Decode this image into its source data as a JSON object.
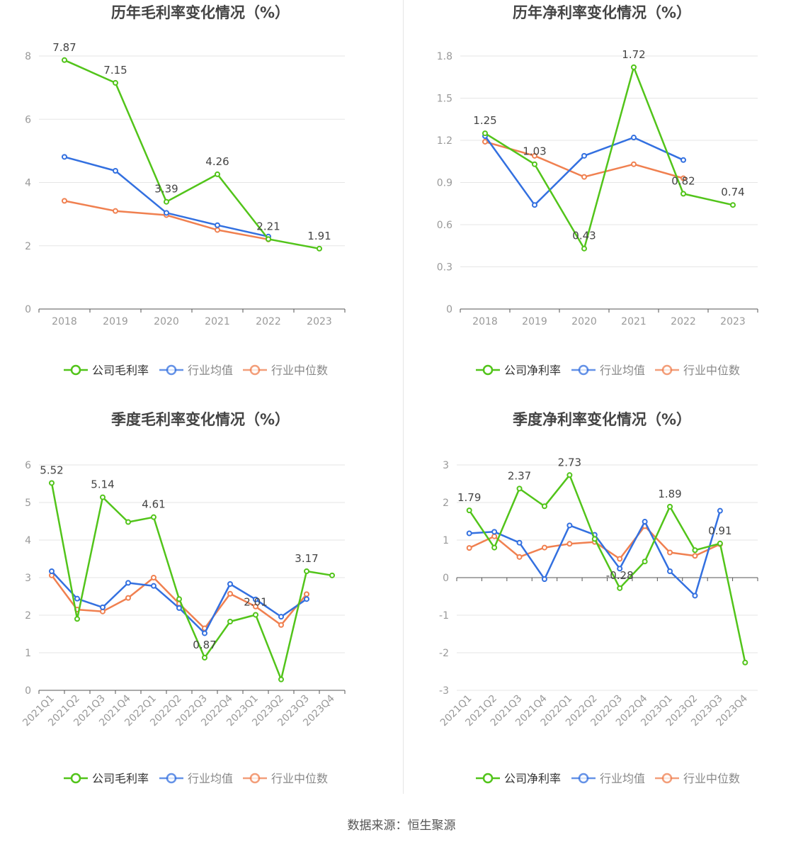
{
  "colors": {
    "company": "#52c41a",
    "avg": "#3370e0",
    "median": "#f08050",
    "grid": "#e6e6e6",
    "axis": "#555555",
    "tick": "#999999",
    "title": "#444444",
    "label": "#444444"
  },
  "legend": {
    "avg": "行业均值",
    "median": "行业中位数"
  },
  "footer": "数据来源：恒生聚源",
  "chart_data": [
    {
      "type": "line",
      "title": "历年毛利率变化情况（%）",
      "categories": [
        "2018",
        "2019",
        "2020",
        "2021",
        "2022",
        "2023"
      ],
      "ylim": [
        0,
        8
      ],
      "yticks": [
        0,
        2,
        4,
        6,
        8
      ],
      "series": [
        {
          "name": "公司毛利率",
          "values": [
            7.87,
            7.15,
            3.39,
            4.26,
            2.21,
            1.91
          ],
          "labels": [
            "7.87",
            "7.15",
            "3.39",
            "4.26",
            "2.21",
            "1.91"
          ]
        },
        {
          "name": "行业均值",
          "values": [
            4.81,
            4.37,
            3.04,
            2.65,
            2.29,
            null
          ]
        },
        {
          "name": "行业中位数",
          "values": [
            3.42,
            3.1,
            2.97,
            2.5,
            2.2,
            null
          ]
        }
      ]
    },
    {
      "type": "line",
      "title": "历年净利率变化情况（%）",
      "categories": [
        "2018",
        "2019",
        "2020",
        "2021",
        "2022",
        "2023"
      ],
      "ylim": [
        0,
        1.8
      ],
      "yticks": [
        0,
        0.3,
        0.6,
        0.9,
        1.2,
        1.5,
        1.8
      ],
      "series": [
        {
          "name": "公司净利率",
          "values": [
            1.25,
            1.03,
            0.43,
            1.72,
            0.82,
            0.74
          ],
          "labels": [
            "1.25",
            "1.03",
            "0.43",
            "1.72",
            "0.82",
            "0.74"
          ]
        },
        {
          "name": "行业均值",
          "values": [
            1.23,
            0.74,
            1.09,
            1.22,
            1.06,
            null
          ]
        },
        {
          "name": "行业中位数",
          "values": [
            1.19,
            1.09,
            0.94,
            1.03,
            0.93,
            null
          ]
        }
      ]
    },
    {
      "type": "line",
      "title": "季度毛利率变化情况（%）",
      "categories": [
        "2021Q1",
        "2021Q2",
        "2021Q3",
        "2021Q4",
        "2022Q1",
        "2022Q2",
        "2022Q3",
        "2022Q4",
        "2023Q1",
        "2023Q2",
        "2023Q3",
        "2023Q4"
      ],
      "ylim": [
        0,
        6
      ],
      "yticks": [
        0,
        1,
        2,
        3,
        4,
        5,
        6
      ],
      "series": [
        {
          "name": "公司毛利率",
          "values": [
            5.52,
            1.9,
            5.14,
            4.48,
            4.61,
            2.43,
            0.87,
            1.83,
            2.01,
            0.29,
            3.17,
            3.06
          ],
          "labels": [
            "5.52",
            null,
            "5.14",
            null,
            "4.61",
            null,
            "0.87",
            null,
            "2.01",
            null,
            "3.17",
            null
          ]
        },
        {
          "name": "行业均值",
          "values": [
            3.17,
            2.44,
            2.21,
            2.86,
            2.78,
            2.19,
            1.52,
            2.83,
            2.42,
            1.96,
            2.43,
            null
          ]
        },
        {
          "name": "行业中位数",
          "values": [
            3.06,
            2.15,
            2.1,
            2.46,
            3.0,
            2.31,
            1.65,
            2.57,
            2.23,
            1.74,
            2.56,
            null
          ]
        }
      ]
    },
    {
      "type": "line",
      "title": "季度净利率变化情况（%）",
      "categories": [
        "2021Q1",
        "2021Q2",
        "2021Q3",
        "2021Q4",
        "2022Q1",
        "2022Q2",
        "2022Q3",
        "2022Q4",
        "2023Q1",
        "2023Q2",
        "2023Q3",
        "2023Q4"
      ],
      "ylim": [
        -3,
        3
      ],
      "yticks": [
        -3,
        -2,
        -1,
        0,
        1,
        2,
        3
      ],
      "series": [
        {
          "name": "公司净利率",
          "values": [
            1.79,
            0.8,
            2.37,
            1.9,
            2.73,
            1.03,
            -0.28,
            0.43,
            1.89,
            0.73,
            0.91,
            -2.26
          ],
          "labels": [
            "1.79",
            null,
            "2.37",
            null,
            "2.73",
            null,
            "-0.28",
            null,
            "1.89",
            null,
            "0.91",
            null
          ]
        },
        {
          "name": "行业均值",
          "values": [
            1.18,
            1.22,
            0.93,
            -0.04,
            1.39,
            1.14,
            0.24,
            1.49,
            0.17,
            -0.48,
            1.78,
            null
          ]
        },
        {
          "name": "行业中位数",
          "values": [
            0.79,
            1.1,
            0.55,
            0.8,
            0.9,
            0.95,
            0.5,
            1.37,
            0.67,
            0.58,
            0.89,
            null
          ]
        }
      ]
    }
  ]
}
